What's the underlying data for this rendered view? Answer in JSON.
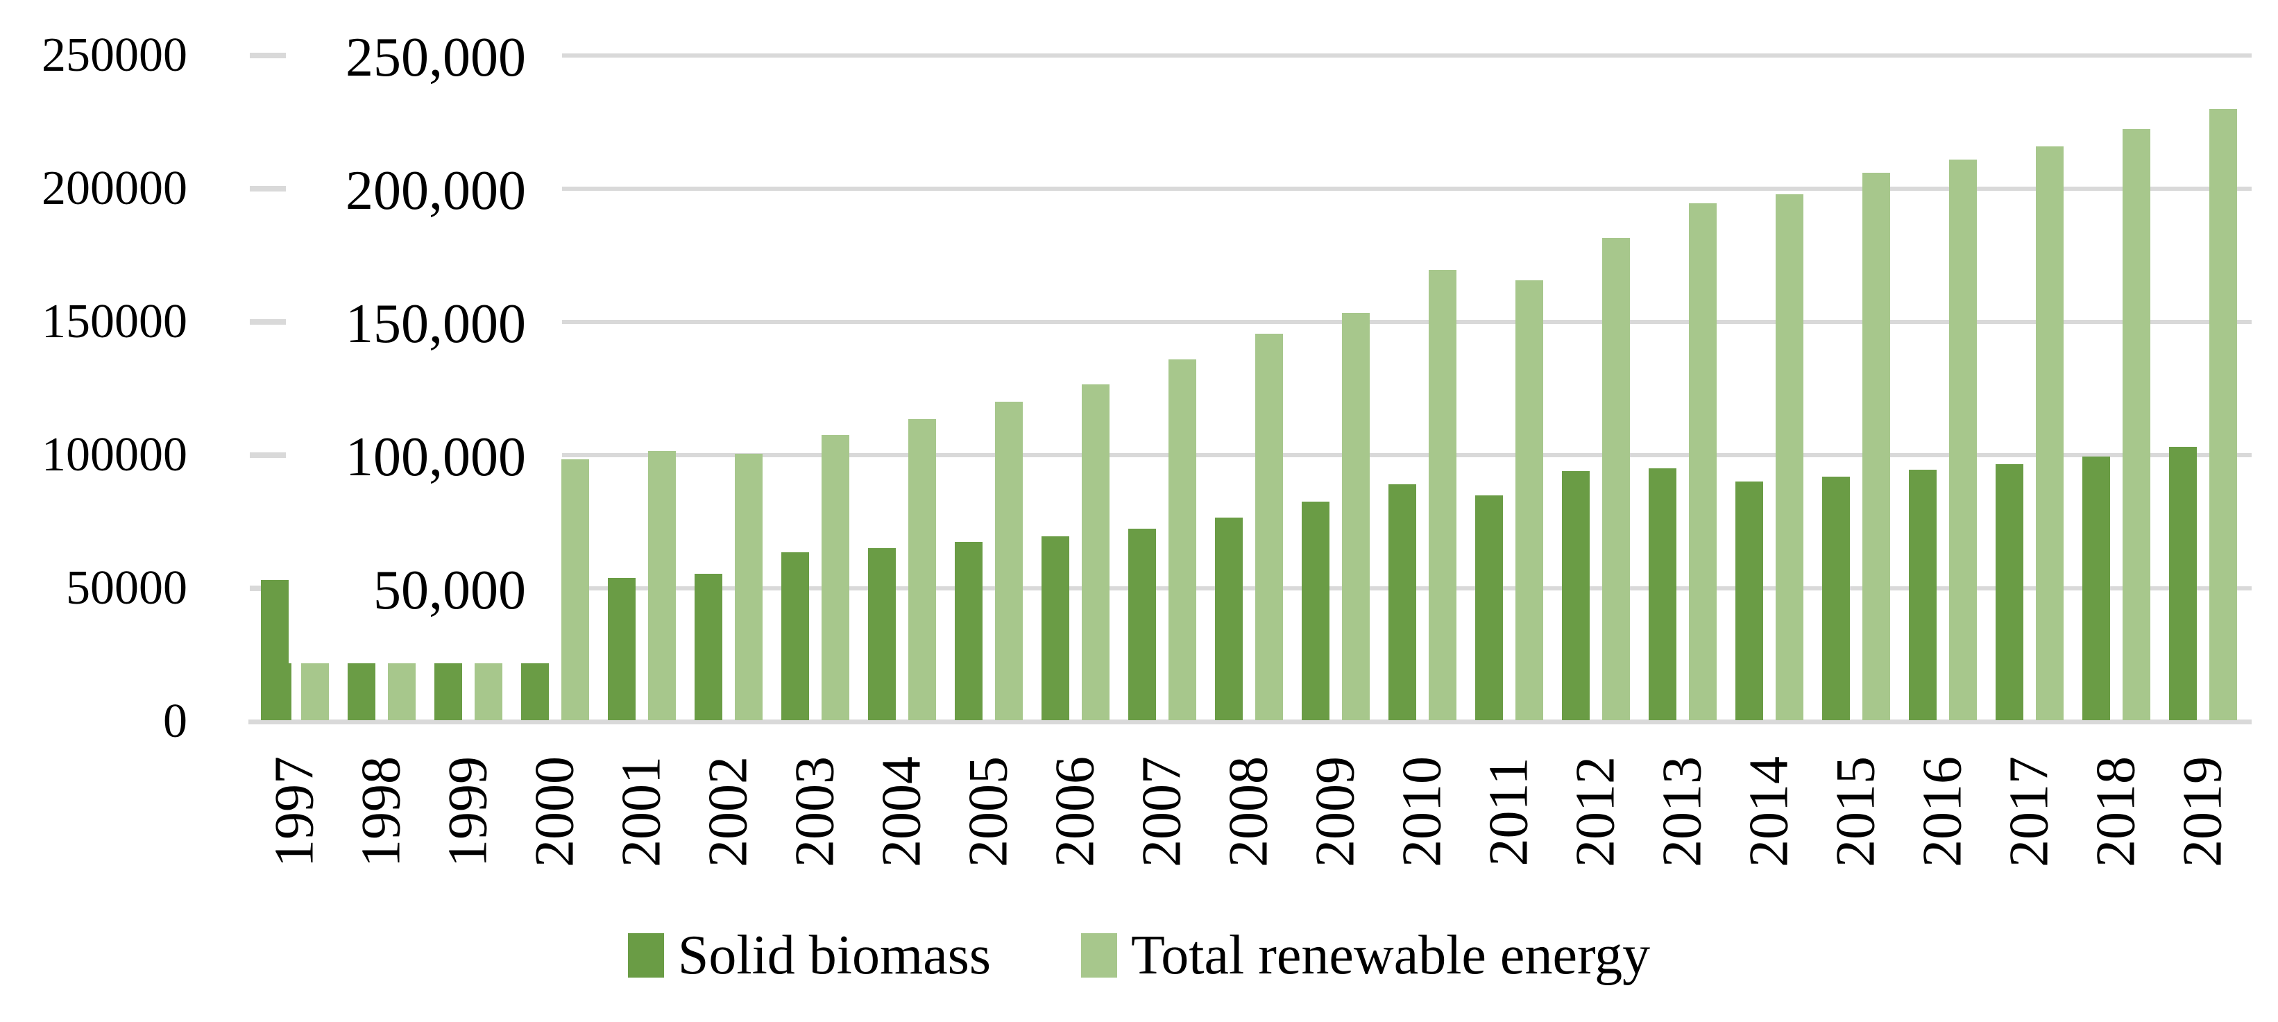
{
  "chart_data": {
    "type": "bar",
    "title": "",
    "xlabel": "",
    "ylabel": "",
    "categories": [
      "1997",
      "1998",
      "1999",
      "2000",
      "2001",
      "2002",
      "2003",
      "2004",
      "2005",
      "2006",
      "2007",
      "2008",
      "2009",
      "2010",
      "2011",
      "2012",
      "2013",
      "2014",
      "2015",
      "2016",
      "2017",
      "2018",
      "2019"
    ],
    "series": [
      {
        "name": "Solid biomass",
        "color": "#6A9C45",
        "values": [
          53000,
          22000,
          22000,
          22000,
          54000,
          55500,
          63500,
          65000,
          67500,
          69500,
          72500,
          76500,
          82500,
          89000,
          85000,
          94000,
          95000,
          90000,
          92000,
          94500,
          96500,
          99500,
          103000
        ]
      },
      {
        "name": "Total renewable energy",
        "color": "#A7C78C",
        "values": [
          22000,
          22000,
          22000,
          98500,
          101500,
          100500,
          107500,
          113500,
          120000,
          126500,
          136000,
          145500,
          153500,
          169500,
          165500,
          181500,
          194500,
          198000,
          206000,
          211000,
          216000,
          222500,
          230000
        ]
      }
    ],
    "ylim": [
      0,
      250000
    ],
    "ytick_step": 50000,
    "y_axis_outer_labels": [
      "0",
      "50000",
      "100000",
      "150000",
      "200000",
      "250000"
    ],
    "y_axis_inner_labels": [
      "50,000",
      "100,000",
      "150,000",
      "200,000",
      "250,000"
    ],
    "grid": "horizontal",
    "gridline_color": "#D9D9D9",
    "background_color": "#FFFFFF",
    "text_color": "#000000",
    "legend_position": "bottom-center",
    "artifact_sliver": {
      "year": "1997",
      "series": "Solid biomass",
      "value": 22000
    }
  }
}
